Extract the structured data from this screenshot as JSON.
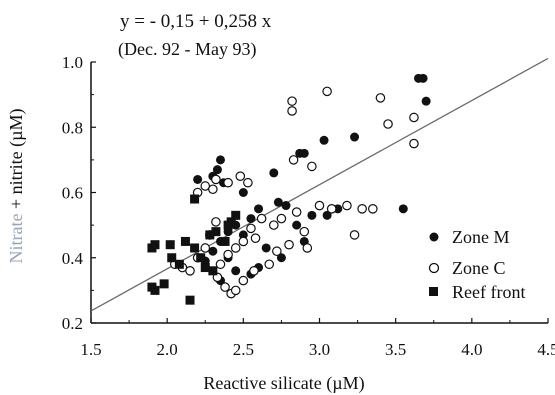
{
  "chart_data": {
    "type": "scatter",
    "annotations": [
      "y =  - 0,15 + 0,258 x",
      "(Dec. 92 - May 93)"
    ],
    "xlabel": "Reactive silicate  (µM)",
    "ylabel_prefix": "Nitrate",
    "ylabel_suffix": " + nitrite  (µM)",
    "xlim": [
      1.5,
      4.5
    ],
    "ylim": [
      0.2,
      1.0
    ],
    "xticks": [
      1.5,
      2.0,
      2.5,
      3.0,
      3.5,
      4.0,
      4.5
    ],
    "xtick_labels": [
      "1.5",
      "2.0",
      "2.5",
      "3.0",
      "3.5",
      "4.0",
      "4.5"
    ],
    "yticks": [
      0.2,
      0.4,
      0.6,
      0.8,
      1.0
    ],
    "ytick_labels": [
      "0.2",
      "0.4",
      "0.6",
      "0.8",
      "1.0"
    ],
    "grid": false,
    "legend_position": "right",
    "regression": {
      "intercept": -0.15,
      "slope": 0.258,
      "x_range": [
        1.5,
        4.5
      ]
    },
    "series": [
      {
        "name": "Zone M",
        "marker": "filled-circle",
        "points": [
          [
            2.2,
            0.64
          ],
          [
            2.3,
            0.65
          ],
          [
            2.35,
            0.7
          ],
          [
            2.33,
            0.67
          ],
          [
            2.37,
            0.63
          ],
          [
            2.5,
            0.6
          ],
          [
            2.7,
            0.66
          ],
          [
            2.87,
            0.72
          ],
          [
            2.9,
            0.72
          ],
          [
            3.03,
            0.76
          ],
          [
            3.23,
            0.77
          ],
          [
            3.65,
            0.95
          ],
          [
            3.68,
            0.95
          ],
          [
            3.7,
            0.88
          ],
          [
            3.55,
            0.55
          ],
          [
            2.73,
            0.57
          ],
          [
            2.78,
            0.56
          ],
          [
            2.6,
            0.55
          ],
          [
            2.55,
            0.52
          ],
          [
            2.45,
            0.5
          ],
          [
            2.4,
            0.48
          ],
          [
            2.35,
            0.45
          ],
          [
            2.3,
            0.42
          ],
          [
            2.5,
            0.47
          ],
          [
            2.65,
            0.43
          ],
          [
            2.6,
            0.37
          ],
          [
            2.35,
            0.33
          ],
          [
            2.45,
            0.36
          ],
          [
            2.55,
            0.35
          ],
          [
            2.75,
            0.4
          ],
          [
            2.85,
            0.5
          ],
          [
            2.9,
            0.45
          ],
          [
            2.95,
            0.53
          ],
          [
            3.05,
            0.53
          ],
          [
            3.12,
            0.55
          ],
          [
            2.25,
            0.39
          ],
          [
            2.4,
            0.4
          ]
        ]
      },
      {
        "name": "Zone C",
        "marker": "open-circle",
        "points": [
          [
            2.2,
            0.6
          ],
          [
            2.25,
            0.62
          ],
          [
            2.3,
            0.61
          ],
          [
            2.32,
            0.64
          ],
          [
            2.4,
            0.63
          ],
          [
            2.48,
            0.65
          ],
          [
            2.53,
            0.63
          ],
          [
            2.82,
            0.88
          ],
          [
            2.82,
            0.85
          ],
          [
            3.05,
            0.91
          ],
          [
            2.83,
            0.7
          ],
          [
            2.95,
            0.68
          ],
          [
            3.4,
            0.89
          ],
          [
            3.45,
            0.81
          ],
          [
            3.62,
            0.83
          ],
          [
            3.62,
            0.75
          ],
          [
            3.23,
            0.47
          ],
          [
            3.0,
            0.56
          ],
          [
            3.08,
            0.55
          ],
          [
            3.18,
            0.56
          ],
          [
            3.28,
            0.55
          ],
          [
            3.35,
            0.55
          ],
          [
            2.85,
            0.54
          ],
          [
            2.75,
            0.52
          ],
          [
            2.7,
            0.5
          ],
          [
            2.62,
            0.52
          ],
          [
            2.55,
            0.49
          ],
          [
            2.58,
            0.46
          ],
          [
            2.5,
            0.45
          ],
          [
            2.45,
            0.43
          ],
          [
            2.4,
            0.41
          ],
          [
            2.35,
            0.38
          ],
          [
            2.33,
            0.34
          ],
          [
            2.38,
            0.31
          ],
          [
            2.42,
            0.29
          ],
          [
            2.45,
            0.3
          ],
          [
            2.5,
            0.33
          ],
          [
            2.57,
            0.36
          ],
          [
            2.67,
            0.38
          ],
          [
            2.72,
            0.42
          ],
          [
            2.8,
            0.44
          ],
          [
            2.9,
            0.48
          ],
          [
            2.92,
            0.43
          ],
          [
            2.05,
            0.38
          ],
          [
            2.1,
            0.37
          ],
          [
            2.15,
            0.36
          ],
          [
            2.2,
            0.4
          ],
          [
            2.25,
            0.43
          ],
          [
            2.28,
            0.47
          ],
          [
            2.32,
            0.51
          ]
        ]
      },
      {
        "name": "Reef front",
        "marker": "filled-square",
        "points": [
          [
            1.9,
            0.43
          ],
          [
            1.92,
            0.44
          ],
          [
            2.02,
            0.44
          ],
          [
            2.03,
            0.4
          ],
          [
            2.12,
            0.45
          ],
          [
            2.08,
            0.38
          ],
          [
            2.18,
            0.43
          ],
          [
            2.22,
            0.4
          ],
          [
            2.25,
            0.37
          ],
          [
            2.3,
            0.36
          ],
          [
            2.28,
            0.47
          ],
          [
            2.32,
            0.48
          ],
          [
            2.42,
            0.51
          ],
          [
            2.45,
            0.53
          ],
          [
            2.4,
            0.5
          ],
          [
            2.38,
            0.45
          ],
          [
            2.18,
            0.58
          ],
          [
            1.9,
            0.31
          ],
          [
            1.92,
            0.3
          ],
          [
            1.98,
            0.32
          ],
          [
            2.15,
            0.27
          ]
        ]
      }
    ]
  }
}
